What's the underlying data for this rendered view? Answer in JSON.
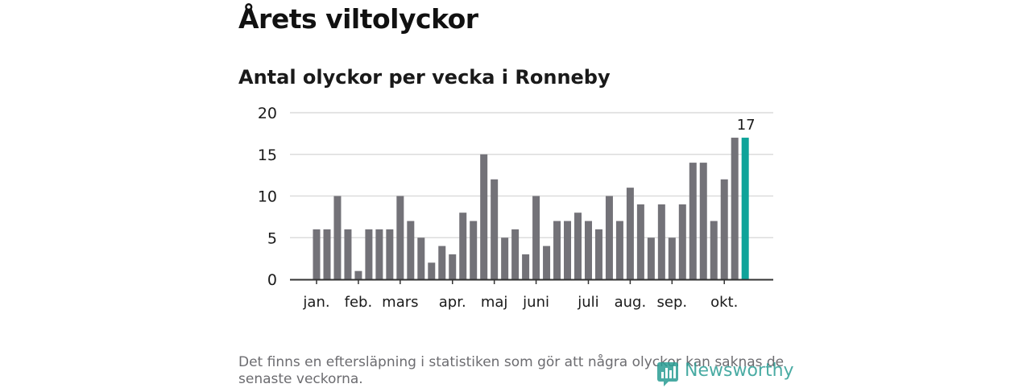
{
  "header": {
    "title": "Årets viltolyckor",
    "subtitle": "Antal olyckor per vecka i Ronneby"
  },
  "chart_data": {
    "type": "bar",
    "title": "Antal olyckor per vecka i Ronneby",
    "xlabel": "",
    "ylabel": "",
    "ylim": [
      0,
      20
    ],
    "yticks": [
      0,
      5,
      10,
      15,
      20
    ],
    "grid": true,
    "values": [
      6,
      6,
      10,
      6,
      1,
      6,
      6,
      6,
      10,
      7,
      5,
      2,
      4,
      3,
      8,
      7,
      15,
      12,
      5,
      6,
      3,
      10,
      4,
      7,
      7,
      8,
      7,
      6,
      10,
      7,
      11,
      9,
      5,
      9,
      5,
      9,
      14,
      14,
      7,
      12,
      17,
      17
    ],
    "highlight_index": 41,
    "highlight_label": "17",
    "month_ticks": [
      {
        "label": "jan.",
        "week": 1
      },
      {
        "label": "feb.",
        "week": 5
      },
      {
        "label": "mars",
        "week": 9
      },
      {
        "label": "apr.",
        "week": 14
      },
      {
        "label": "maj",
        "week": 18
      },
      {
        "label": "juni",
        "week": 22
      },
      {
        "label": "juli",
        "week": 27
      },
      {
        "label": "aug.",
        "week": 31
      },
      {
        "label": "sep.",
        "week": 35
      },
      {
        "label": "okt.",
        "week": 40
      }
    ],
    "colors": {
      "bar": "#737278",
      "highlight": "#0fa39a",
      "grid": "#dcdcdc",
      "axis": "#333333"
    }
  },
  "footer": {
    "note": "Det finns en eftersläpning i statistiken som gör att några olyckor kan saknas de senaste veckorna.",
    "logo_text": "Newsworthy",
    "logo_icon": "newsworthy-logo-icon"
  }
}
